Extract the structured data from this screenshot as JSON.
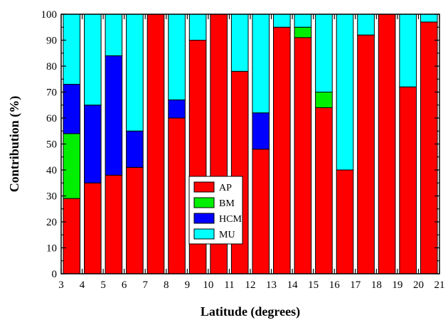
{
  "chart_data": {
    "type": "bar",
    "stacked": true,
    "xlabel": "Latitude (degrees)",
    "ylabel": "Contribution (%)",
    "xlim": [
      3,
      21
    ],
    "ylim": [
      0,
      100
    ],
    "x_ticks": [
      3,
      4,
      5,
      6,
      7,
      8,
      9,
      10,
      11,
      12,
      13,
      14,
      15,
      16,
      17,
      18,
      19,
      20,
      21
    ],
    "y_ticks": [
      0,
      10,
      20,
      30,
      40,
      50,
      60,
      70,
      80,
      90,
      100
    ],
    "legend_position": "center-bottom",
    "grid": false,
    "colors": {
      "AP": "#ff0000",
      "BM": "#00ee00",
      "HCM": "#0000ff",
      "MU": "#00ffff"
    },
    "series": [
      {
        "name": "AP",
        "values": [
          29,
          35,
          38,
          41,
          100,
          60,
          90,
          100,
          78,
          48,
          95,
          91,
          64,
          40,
          92,
          100,
          72,
          97
        ]
      },
      {
        "name": "BM",
        "values": [
          25,
          0,
          0,
          0,
          0,
          0,
          0,
          0,
          0,
          0,
          0,
          4,
          6,
          0,
          0,
          0,
          0,
          0
        ]
      },
      {
        "name": "HCM",
        "values": [
          19,
          30,
          46,
          14,
          0,
          7,
          0,
          0,
          0,
          14,
          0,
          0,
          0,
          0,
          0,
          0,
          0,
          0
        ]
      },
      {
        "name": "MU",
        "values": [
          27,
          35,
          16,
          45,
          0,
          33,
          10,
          0,
          22,
          38,
          5,
          5,
          30,
          60,
          8,
          0,
          28,
          3
        ]
      }
    ],
    "legend": [
      "AP",
      "BM",
      "HCM",
      "MU"
    ]
  }
}
